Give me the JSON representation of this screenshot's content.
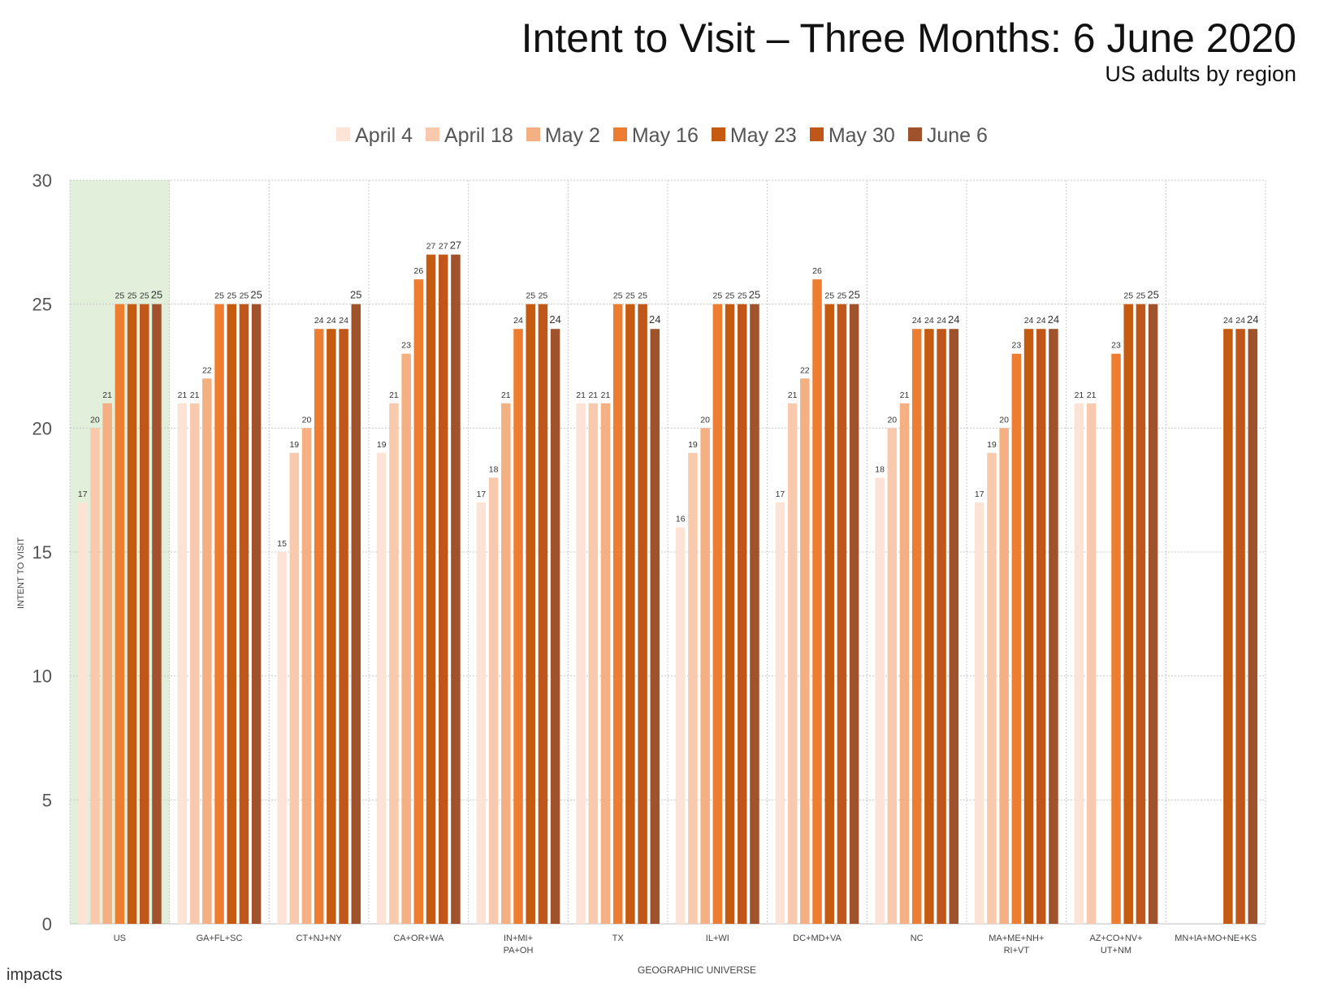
{
  "header": {
    "title": "Intent to Visit – Three Months: 6 June 2020",
    "subtitle": "US adults by region"
  },
  "brand": {
    "logo_text": "impacts"
  },
  "chart_data": {
    "type": "bar",
    "title": "Intent to Visit – Three Months: 6 June 2020",
    "subtitle": "US adults by region",
    "xlabel": "GEOGRAPHIC UNIVERSE",
    "ylabel": "INTENT TO VISIT",
    "ylim": [
      0,
      30
    ],
    "yticks": [
      0,
      5,
      10,
      15,
      20,
      25,
      30
    ],
    "grid": true,
    "legend_position": "top",
    "highlight_category": "US",
    "highlight_color": "#e2efda",
    "categories": [
      "US",
      "GA+FL+SC",
      "CT+NJ+NY",
      "CA+OR+WA",
      "IN+MI+\nPA+OH",
      "TX",
      "IL+WI",
      "DC+MD+VA",
      "NC",
      "MA+ME+NH+\nRI+VT",
      "AZ+CO+NV+\nUT+NM",
      "MN+IA+MO+NE+KS"
    ],
    "series": [
      {
        "name": "April 4",
        "color": "#fde3d5",
        "values": [
          17,
          21,
          15,
          19,
          17,
          21,
          16,
          17,
          18,
          17,
          21,
          null
        ]
      },
      {
        "name": "April 18",
        "color": "#f8c9ac",
        "values": [
          20,
          21,
          19,
          21,
          18,
          21,
          19,
          21,
          20,
          19,
          21,
          null
        ]
      },
      {
        "name": "May 2",
        "color": "#f4b083",
        "values": [
          21,
          22,
          20,
          23,
          21,
          21,
          20,
          22,
          21,
          20,
          null,
          null
        ]
      },
      {
        "name": "May 16",
        "color": "#ed7d31",
        "values": [
          25,
          25,
          24,
          26,
          24,
          25,
          25,
          26,
          24,
          23,
          23,
          null
        ]
      },
      {
        "name": "May 23",
        "color": "#c55a11",
        "values": [
          25,
          25,
          24,
          27,
          25,
          25,
          25,
          25,
          24,
          24,
          25,
          24
        ]
      },
      {
        "name": "May 30",
        "color": "#c0561a",
        "values": [
          25,
          25,
          24,
          27,
          25,
          25,
          25,
          25,
          24,
          24,
          25,
          24
        ]
      },
      {
        "name": "June 6",
        "color": "#a0522d",
        "values": [
          25,
          25,
          25,
          27,
          24,
          24,
          25,
          25,
          24,
          24,
          25,
          24
        ]
      }
    ]
  }
}
